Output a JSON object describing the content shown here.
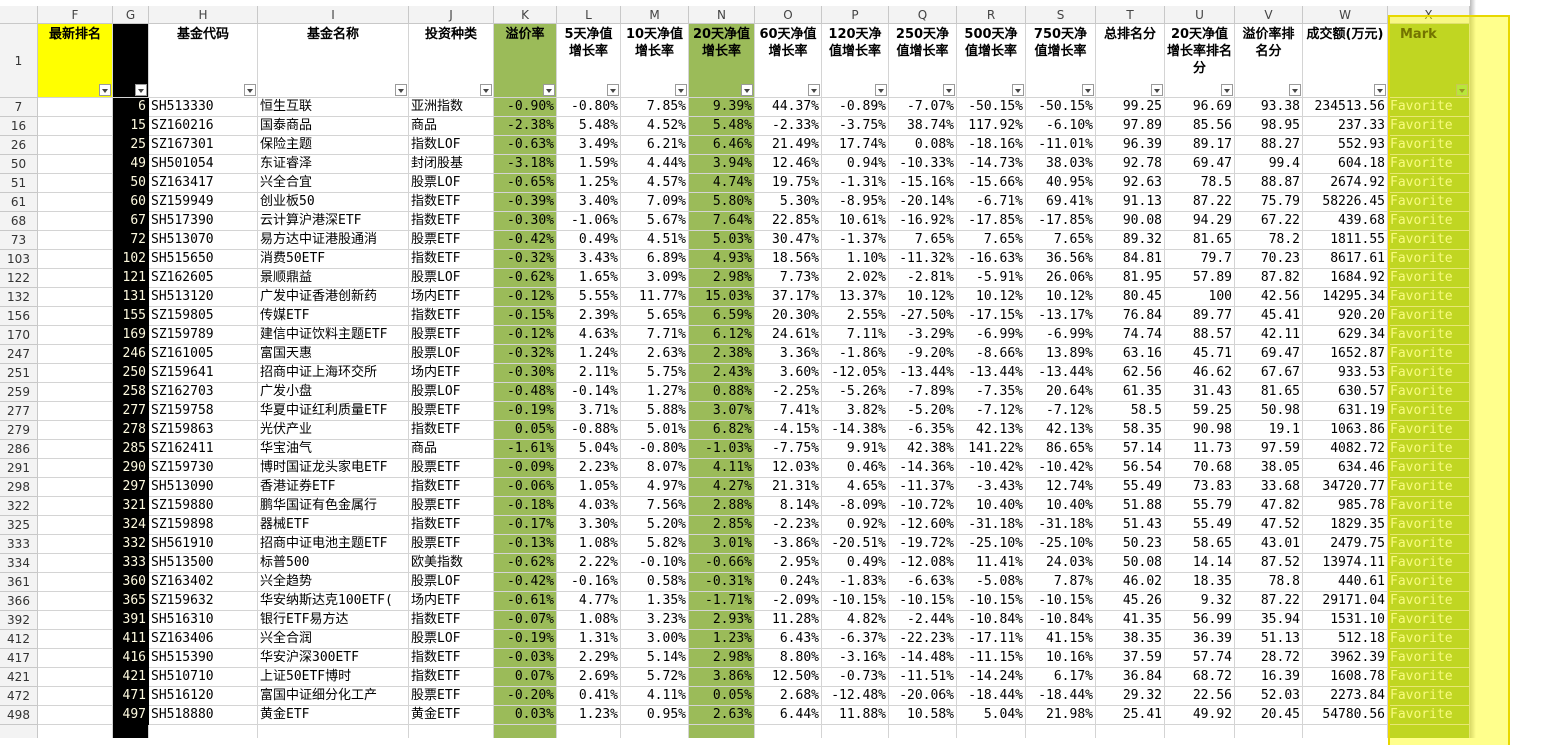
{
  "sheet": {
    "column_letters": [
      "F",
      "G",
      "H",
      "I",
      "J",
      "K",
      "L",
      "M",
      "N",
      "O",
      "P",
      "Q",
      "R",
      "S",
      "T",
      "U",
      "V",
      "W",
      "X"
    ],
    "header_row_number": "1",
    "headers": {
      "F": "最新排名",
      "H": "基金代码",
      "I": "基金名称",
      "J": "投资种类",
      "K": "溢价率",
      "L": "5天净值增长率",
      "M": "10天净值增长率",
      "N": "20天净值增长率",
      "O": "60天净值增长率",
      "P": "120天净值增长率",
      "Q": "250天净值增长率",
      "R": "500天净值增长率",
      "S": "750天净值增长率",
      "T": "总排名分",
      "U": "20天净值增长率排名分",
      "V": "溢价率排名分",
      "W": "成交额(万元)",
      "X": "Mark"
    },
    "rows": [
      [
        "7",
        "6",
        "SH513330",
        "恒生互联",
        "亚洲指数",
        "-0.90%",
        "-0.80%",
        "7.85%",
        "9.39%",
        "44.37%",
        "-0.89%",
        "-7.07%",
        "-50.15%",
        "-50.15%",
        "99.25",
        "96.69",
        "93.38",
        "234513.56",
        "Favorite"
      ],
      [
        "16",
        "15",
        "SZ160216",
        "国泰商品",
        "商品",
        "-2.38%",
        "5.48%",
        "4.52%",
        "5.48%",
        "-2.33%",
        "-3.75%",
        "38.74%",
        "117.92%",
        "-6.10%",
        "97.89",
        "85.56",
        "98.95",
        "237.33",
        "Favorite"
      ],
      [
        "26",
        "25",
        "SZ167301",
        "保险主题",
        "指数LOF",
        "-0.63%",
        "3.49%",
        "6.21%",
        "6.46%",
        "21.49%",
        "17.74%",
        "0.08%",
        "-18.16%",
        "-11.01%",
        "96.39",
        "89.17",
        "88.27",
        "552.93",
        "Favorite"
      ],
      [
        "50",
        "49",
        "SH501054",
        "东证睿泽",
        "封闭股基",
        "-3.18%",
        "1.59%",
        "4.44%",
        "3.94%",
        "12.46%",
        "0.94%",
        "-10.33%",
        "-14.73%",
        "38.03%",
        "92.78",
        "69.47",
        "99.4",
        "604.18",
        "Favorite"
      ],
      [
        "51",
        "50",
        "SZ163417",
        "兴全合宜",
        "股票LOF",
        "-0.65%",
        "1.25%",
        "4.57%",
        "4.74%",
        "19.75%",
        "-1.31%",
        "-15.16%",
        "-15.66%",
        "40.95%",
        "92.63",
        "78.5",
        "88.87",
        "2674.92",
        "Favorite"
      ],
      [
        "61",
        "60",
        "SZ159949",
        "创业板50",
        "指数ETF",
        "-0.39%",
        "3.40%",
        "7.09%",
        "5.80%",
        "5.30%",
        "-8.95%",
        "-20.14%",
        "-6.71%",
        "69.41%",
        "91.13",
        "87.22",
        "75.79",
        "58226.45",
        "Favorite"
      ],
      [
        "68",
        "67",
        "SH517390",
        "云计算沪港深ETF",
        "指数ETF",
        "-0.30%",
        "-1.06%",
        "5.67%",
        "7.64%",
        "22.85%",
        "10.61%",
        "-16.92%",
        "-17.85%",
        "-17.85%",
        "90.08",
        "94.29",
        "67.22",
        "439.68",
        "Favorite"
      ],
      [
        "73",
        "72",
        "SH513070",
        "易方达中证港股通消",
        "股票ETF",
        "-0.42%",
        "0.49%",
        "4.51%",
        "5.03%",
        "30.47%",
        "-1.37%",
        "7.65%",
        "7.65%",
        "7.65%",
        "89.32",
        "81.65",
        "78.2",
        "1811.55",
        "Favorite"
      ],
      [
        "103",
        "102",
        "SH515650",
        "消费50ETF",
        "指数ETF",
        "-0.32%",
        "3.43%",
        "6.89%",
        "4.93%",
        "18.56%",
        "1.10%",
        "-11.32%",
        "-16.63%",
        "36.56%",
        "84.81",
        "79.7",
        "70.23",
        "8617.61",
        "Favorite"
      ],
      [
        "122",
        "121",
        "SZ162605",
        "景顺鼎益",
        "股票LOF",
        "-0.62%",
        "1.65%",
        "3.09%",
        "2.98%",
        "7.73%",
        "2.02%",
        "-2.81%",
        "-5.91%",
        "26.06%",
        "81.95",
        "57.89",
        "87.82",
        "1684.92",
        "Favorite"
      ],
      [
        "132",
        "131",
        "SH513120",
        "广发中证香港创新药",
        "场内ETF",
        "-0.12%",
        "5.55%",
        "11.77%",
        "15.03%",
        "37.17%",
        "13.37%",
        "10.12%",
        "10.12%",
        "10.12%",
        "80.45",
        "100",
        "42.56",
        "14295.34",
        "Favorite"
      ],
      [
        "156",
        "155",
        "SZ159805",
        "传媒ETF",
        "指数ETF",
        "-0.15%",
        "2.39%",
        "5.65%",
        "6.59%",
        "20.30%",
        "2.55%",
        "-27.50%",
        "-17.15%",
        "-13.17%",
        "76.84",
        "89.77",
        "45.41",
        "920.20",
        "Favorite"
      ],
      [
        "170",
        "169",
        "SZ159789",
        "建信中证饮料主题ETF",
        "股票ETF",
        "-0.12%",
        "4.63%",
        "7.71%",
        "6.12%",
        "24.61%",
        "7.11%",
        "-3.29%",
        "-6.99%",
        "-6.99%",
        "74.74",
        "88.57",
        "42.11",
        "629.34",
        "Favorite"
      ],
      [
        "247",
        "246",
        "SZ161005",
        "富国天惠",
        "股票LOF",
        "-0.32%",
        "1.24%",
        "2.63%",
        "2.38%",
        "3.36%",
        "-1.86%",
        "-9.20%",
        "-8.66%",
        "13.89%",
        "63.16",
        "45.71",
        "69.47",
        "1652.87",
        "Favorite"
      ],
      [
        "251",
        "250",
        "SZ159641",
        "招商中证上海环交所",
        "场内ETF",
        "-0.30%",
        "2.11%",
        "5.75%",
        "2.43%",
        "3.60%",
        "-12.05%",
        "-13.44%",
        "-13.44%",
        "-13.44%",
        "62.56",
        "46.62",
        "67.67",
        "933.53",
        "Favorite"
      ],
      [
        "259",
        "258",
        "SZ162703",
        "广发小盘",
        "股票LOF",
        "-0.48%",
        "-0.14%",
        "1.27%",
        "0.88%",
        "-2.25%",
        "-5.26%",
        "-7.89%",
        "-7.35%",
        "20.64%",
        "61.35",
        "31.43",
        "81.65",
        "630.57",
        "Favorite"
      ],
      [
        "277",
        "277",
        "SZ159758",
        "华夏中证红利质量ETF",
        "股票ETF",
        "-0.19%",
        "3.71%",
        "5.88%",
        "3.07%",
        "7.41%",
        "3.82%",
        "-5.20%",
        "-7.12%",
        "-7.12%",
        "58.5",
        "59.25",
        "50.98",
        "631.19",
        "Favorite"
      ],
      [
        "279",
        "278",
        "SZ159863",
        "光伏产业",
        "指数ETF",
        "0.05%",
        "-0.88%",
        "5.01%",
        "6.82%",
        "-4.15%",
        "-14.38%",
        "-6.35%",
        "42.13%",
        "42.13%",
        "58.35",
        "90.98",
        "19.1",
        "1063.86",
        "Favorite"
      ],
      [
        "286",
        "285",
        "SZ162411",
        "华宝油气",
        "商品",
        "-1.61%",
        "5.04%",
        "-0.80%",
        "-1.03%",
        "-7.75%",
        "9.91%",
        "42.38%",
        "141.22%",
        "86.65%",
        "57.14",
        "11.73",
        "97.59",
        "4082.72",
        "Favorite"
      ],
      [
        "291",
        "290",
        "SZ159730",
        "博时国证龙头家电ETF",
        "股票ETF",
        "-0.09%",
        "2.23%",
        "8.07%",
        "4.11%",
        "12.03%",
        "0.46%",
        "-14.36%",
        "-10.42%",
        "-10.42%",
        "56.54",
        "70.68",
        "38.05",
        "634.46",
        "Favorite"
      ],
      [
        "298",
        "297",
        "SH513090",
        "香港证券ETF",
        "指数ETF",
        "-0.06%",
        "1.05%",
        "4.97%",
        "4.27%",
        "21.31%",
        "4.65%",
        "-11.37%",
        "-3.43%",
        "12.74%",
        "55.49",
        "73.83",
        "33.68",
        "34720.77",
        "Favorite"
      ],
      [
        "322",
        "321",
        "SZ159880",
        "鹏华国证有色金属行",
        "股票ETF",
        "-0.18%",
        "4.03%",
        "7.56%",
        "2.88%",
        "8.14%",
        "-8.09%",
        "-10.72%",
        "10.40%",
        "10.40%",
        "51.88",
        "55.79",
        "47.82",
        "985.78",
        "Favorite"
      ],
      [
        "325",
        "324",
        "SZ159898",
        "器械ETF",
        "指数ETF",
        "-0.17%",
        "3.30%",
        "5.20%",
        "2.85%",
        "-2.23%",
        "0.92%",
        "-12.60%",
        "-31.18%",
        "-31.18%",
        "51.43",
        "55.49",
        "47.52",
        "1829.35",
        "Favorite"
      ],
      [
        "333",
        "332",
        "SH561910",
        "招商中证电池主题ETF",
        "股票ETF",
        "-0.13%",
        "1.08%",
        "5.82%",
        "3.01%",
        "-3.86%",
        "-20.51%",
        "-19.72%",
        "-25.10%",
        "-25.10%",
        "50.23",
        "58.65",
        "43.01",
        "2479.75",
        "Favorite"
      ],
      [
        "334",
        "333",
        "SH513500",
        "标普500",
        "欧美指数",
        "-0.62%",
        "2.22%",
        "-0.10%",
        "-0.66%",
        "2.95%",
        "0.49%",
        "-12.08%",
        "11.41%",
        "24.03%",
        "50.08",
        "14.14",
        "87.52",
        "13974.11",
        "Favorite"
      ],
      [
        "361",
        "360",
        "SZ163402",
        "兴全趋势",
        "股票LOF",
        "-0.42%",
        "-0.16%",
        "0.58%",
        "-0.31%",
        "0.24%",
        "-1.83%",
        "-6.63%",
        "-5.08%",
        "7.87%",
        "46.02",
        "18.35",
        "78.8",
        "440.61",
        "Favorite"
      ],
      [
        "366",
        "365",
        "SZ159632",
        "华安纳斯达克100ETF(",
        "场内ETF",
        "-0.61%",
        "4.77%",
        "1.35%",
        "-1.71%",
        "-2.09%",
        "-10.15%",
        "-10.15%",
        "-10.15%",
        "-10.15%",
        "45.26",
        "9.32",
        "87.22",
        "29171.04",
        "Favorite"
      ],
      [
        "392",
        "391",
        "SH516310",
        "银行ETF易方达",
        "指数ETF",
        "-0.07%",
        "1.08%",
        "3.23%",
        "2.93%",
        "11.28%",
        "4.82%",
        "-2.44%",
        "-10.84%",
        "-10.84%",
        "41.35",
        "56.99",
        "35.94",
        "1531.10",
        "Favorite"
      ],
      [
        "412",
        "411",
        "SZ163406",
        "兴全合润",
        "股票LOF",
        "-0.19%",
        "1.31%",
        "3.00%",
        "1.23%",
        "6.43%",
        "-6.37%",
        "-22.23%",
        "-17.11%",
        "41.15%",
        "38.35",
        "36.39",
        "51.13",
        "512.18",
        "Favorite"
      ],
      [
        "417",
        "416",
        "SH515390",
        "华安沪深300ETF",
        "指数ETF",
        "-0.03%",
        "2.29%",
        "5.14%",
        "2.98%",
        "8.80%",
        "-3.16%",
        "-14.48%",
        "-11.15%",
        "10.16%",
        "37.59",
        "57.74",
        "28.72",
        "3962.39",
        "Favorite"
      ],
      [
        "421",
        "421",
        "SH510710",
        "上证50ETF博时",
        "指数ETF",
        "0.07%",
        "2.69%",
        "5.72%",
        "3.86%",
        "12.50%",
        "-0.73%",
        "-11.51%",
        "-14.24%",
        "6.17%",
        "36.84",
        "68.72",
        "16.39",
        "1608.78",
        "Favorite"
      ],
      [
        "472",
        "471",
        "SH516120",
        "富国中证细分化工产",
        "股票ETF",
        "-0.20%",
        "0.41%",
        "4.11%",
        "0.05%",
        "2.68%",
        "-12.48%",
        "-20.06%",
        "-18.44%",
        "-18.44%",
        "29.32",
        "22.56",
        "52.03",
        "2273.84",
        "Favorite"
      ],
      [
        "498",
        "497",
        "SH518880",
        "黄金ETF",
        "黄金ETF",
        "0.03%",
        "1.23%",
        "0.95%",
        "2.63%",
        "6.44%",
        "11.88%",
        "10.58%",
        "5.04%",
        "21.98%",
        "25.41",
        "49.92",
        "20.45",
        "54780.56",
        "Favorite"
      ]
    ]
  }
}
